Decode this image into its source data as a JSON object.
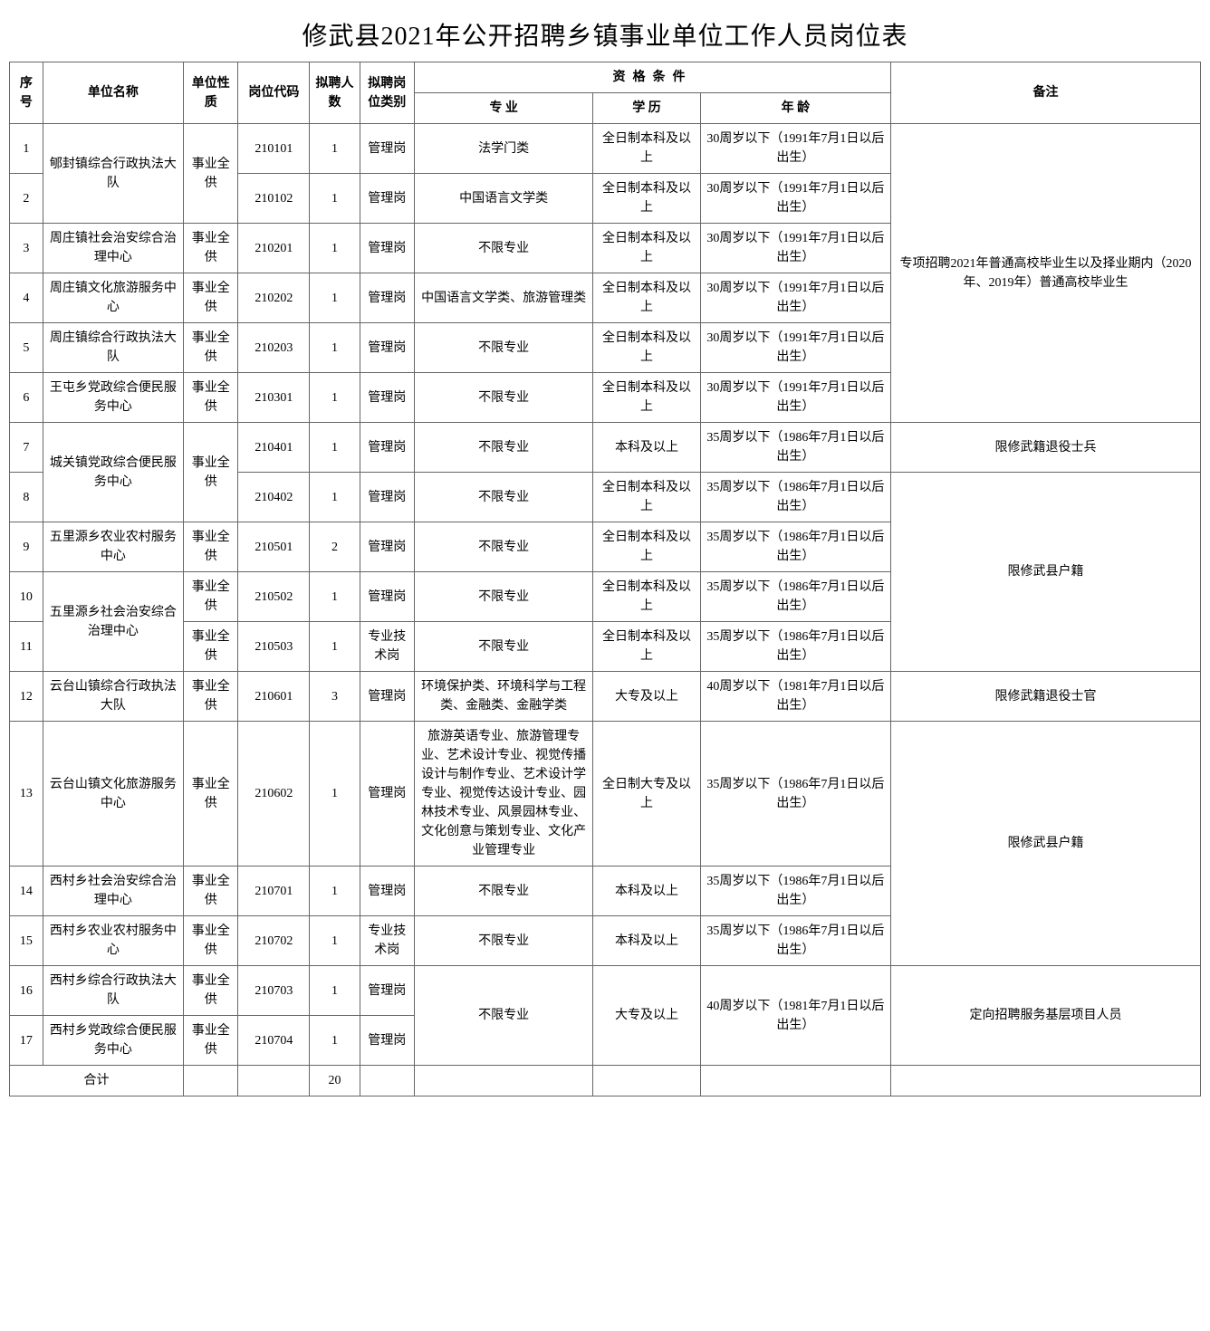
{
  "title": "修武县2021年公开招聘乡镇事业单位工作人员岗位表",
  "headers": {
    "seq": "序号",
    "unit": "单位名称",
    "nature": "单位性质",
    "code": "岗位代码",
    "count": "拟聘人数",
    "type": "拟聘岗位类别",
    "qual": "资格条件",
    "major": "专 业",
    "edu": "学 历",
    "age": "年 龄",
    "remark": "备注"
  },
  "rows": [
    {
      "seq": "1",
      "unit": "郇封镇综合行政执法大队",
      "unit_rowspan": 2,
      "nature": "事业全供",
      "nature_rowspan": 2,
      "code": "210101",
      "count": "1",
      "type": "管理岗",
      "major": "法学门类",
      "edu": "全日制本科及以上",
      "age": "30周岁以下（1991年7月1日以后出生）",
      "remark": "专项招聘2021年普通高校毕业生以及择业期内（2020年、2019年）普通高校毕业生",
      "remark_rowspan": 6
    },
    {
      "seq": "2",
      "code": "210102",
      "count": "1",
      "type": "管理岗",
      "major": "中国语言文学类",
      "edu": "全日制本科及以上",
      "age": "30周岁以下（1991年7月1日以后出生）"
    },
    {
      "seq": "3",
      "unit": "周庄镇社会治安综合治理中心",
      "nature": "事业全供",
      "code": "210201",
      "count": "1",
      "type": "管理岗",
      "major": "不限专业",
      "edu": "全日制本科及以上",
      "age": "30周岁以下（1991年7月1日以后出生）"
    },
    {
      "seq": "4",
      "unit": "周庄镇文化旅游服务中心",
      "nature": "事业全供",
      "code": "210202",
      "count": "1",
      "type": "管理岗",
      "major": "中国语言文学类、旅游管理类",
      "edu": "全日制本科及以上",
      "age": "30周岁以下（1991年7月1日以后出生）"
    },
    {
      "seq": "5",
      "unit": "周庄镇综合行政执法大队",
      "nature": "事业全供",
      "code": "210203",
      "count": "1",
      "type": "管理岗",
      "major": "不限专业",
      "edu": "全日制本科及以上",
      "age": "30周岁以下（1991年7月1日以后出生）"
    },
    {
      "seq": "6",
      "unit": "王屯乡党政综合便民服务中心",
      "nature": "事业全供",
      "code": "210301",
      "count": "1",
      "type": "管理岗",
      "major": "不限专业",
      "edu": "全日制本科及以上",
      "age": "30周岁以下（1991年7月1日以后出生）"
    },
    {
      "seq": "7",
      "unit": "城关镇党政综合便民服务中心",
      "unit_rowspan": 2,
      "nature": "事业全供",
      "nature_rowspan": 2,
      "code": "210401",
      "count": "1",
      "type": "管理岗",
      "major": "不限专业",
      "edu": "本科及以上",
      "age": "35周岁以下（1986年7月1日以后出生）",
      "remark": "限修武籍退役士兵",
      "remark_rowspan": 1
    },
    {
      "seq": "8",
      "code": "210402",
      "count": "1",
      "type": "管理岗",
      "major": "不限专业",
      "edu": "全日制本科及以上",
      "age": "35周岁以下（1986年7月1日以后出生）",
      "remark": "限修武县户籍",
      "remark_rowspan": 4
    },
    {
      "seq": "9",
      "unit": "五里源乡农业农村服务中心",
      "nature": "事业全供",
      "code": "210501",
      "count": "2",
      "type": "管理岗",
      "major": "不限专业",
      "edu": "全日制本科及以上",
      "age": "35周岁以下（1986年7月1日以后出生）"
    },
    {
      "seq": "10",
      "unit": "五里源乡社会治安综合治理中心",
      "unit_rowspan": 2,
      "nature": "事业全供",
      "code": "210502",
      "count": "1",
      "type": "管理岗",
      "major": "不限专业",
      "edu": "全日制本科及以上",
      "age": "35周岁以下（1986年7月1日以后出生）"
    },
    {
      "seq": "11",
      "nature": "事业全供",
      "code": "210503",
      "count": "1",
      "type": "专业技术岗",
      "major": "不限专业",
      "edu": "全日制本科及以上",
      "age": "35周岁以下（1986年7月1日以后出生）"
    },
    {
      "seq": "12",
      "unit": "云台山镇综合行政执法大队",
      "nature": "事业全供",
      "code": "210601",
      "count": "3",
      "type": "管理岗",
      "major": "环境保护类、环境科学与工程类、金融类、金融学类",
      "edu": "大专及以上",
      "age": "40周岁以下（1981年7月1日以后出生）",
      "remark": "限修武籍退役士官",
      "remark_rowspan": 1
    },
    {
      "seq": "13",
      "unit": "云台山镇文化旅游服务中心",
      "nature": "事业全供",
      "code": "210602",
      "count": "1",
      "type": "管理岗",
      "major": "旅游英语专业、旅游管理专业、艺术设计专业、视觉传播设计与制作专业、艺术设计学专业、视觉传达设计专业、园林技术专业、风景园林专业、文化创意与策划专业、文化产业管理专业",
      "edu": "全日制大专及以上",
      "age": "35周岁以下（1986年7月1日以后出生）",
      "remark": "限修武县户籍",
      "remark_rowspan": 3
    },
    {
      "seq": "14",
      "unit": "西村乡社会治安综合治理中心",
      "nature": "事业全供",
      "code": "210701",
      "count": "1",
      "type": "管理岗",
      "major": "不限专业",
      "edu": "本科及以上",
      "age": "35周岁以下（1986年7月1日以后出生）"
    },
    {
      "seq": "15",
      "unit": "西村乡农业农村服务中心",
      "nature": "事业全供",
      "code": "210702",
      "count": "1",
      "type": "专业技术岗",
      "major": "不限专业",
      "edu": "本科及以上",
      "age": "35周岁以下（1986年7月1日以后出生）"
    },
    {
      "seq": "16",
      "unit": "西村乡综合行政执法大队",
      "nature": "事业全供",
      "code": "210703",
      "count": "1",
      "type": "管理岗",
      "major": "不限专业",
      "major_rowspan": 2,
      "edu": "大专及以上",
      "edu_rowspan": 2,
      "age": "40周岁以下（1981年7月1日以后出生）",
      "age_rowspan": 2,
      "remark": "定向招聘服务基层项目人员",
      "remark_rowspan": 2
    },
    {
      "seq": "17",
      "unit": "西村乡党政综合便民服务中心",
      "nature": "事业全供",
      "code": "210704",
      "count": "1",
      "type": "管理岗"
    }
  ],
  "summary": {
    "label": "合计",
    "total": "20"
  }
}
